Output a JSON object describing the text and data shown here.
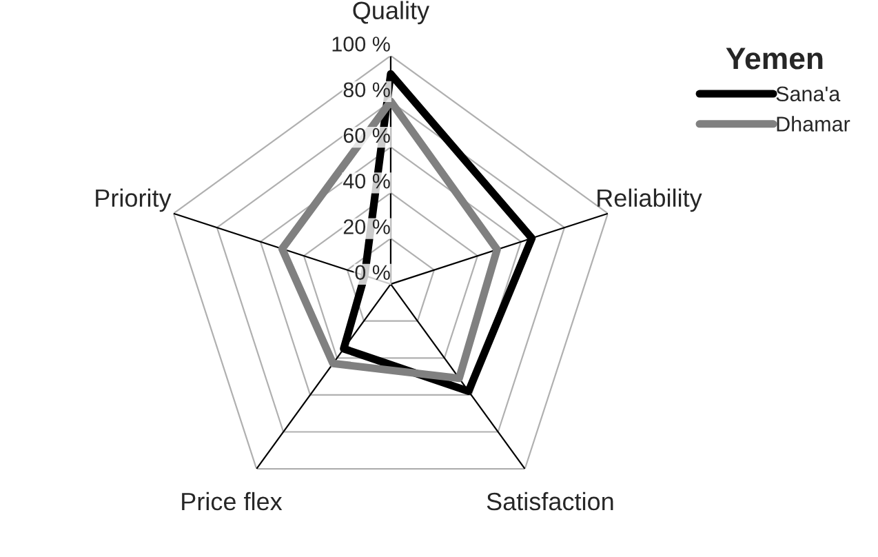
{
  "chart_data": {
    "type": "radar",
    "categories": [
      "Quality",
      "Reliability",
      "Satisfaction",
      "Price flex",
      "Priority"
    ],
    "series": [
      {
        "name": "Sana'a",
        "color": "#000000",
        "values": [
          92,
          65,
          58,
          35,
          12
        ]
      },
      {
        "name": "Dhamar",
        "color": "#808080",
        "values": [
          80,
          49,
          51,
          43,
          50
        ]
      }
    ],
    "ylim": [
      0,
      100
    ],
    "yticks": [
      {
        "value": 0,
        "label": "0 %"
      },
      {
        "value": 20,
        "label": "20 %"
      },
      {
        "value": 40,
        "label": "40 %"
      },
      {
        "value": 60,
        "label": "60 %"
      },
      {
        "value": 80,
        "label": "80 %"
      },
      {
        "value": 100,
        "label": "100 %"
      }
    ],
    "legend_title": "Yemen",
    "legend": "top right",
    "grid": true,
    "marker": "none",
    "line_style": "solid"
  }
}
